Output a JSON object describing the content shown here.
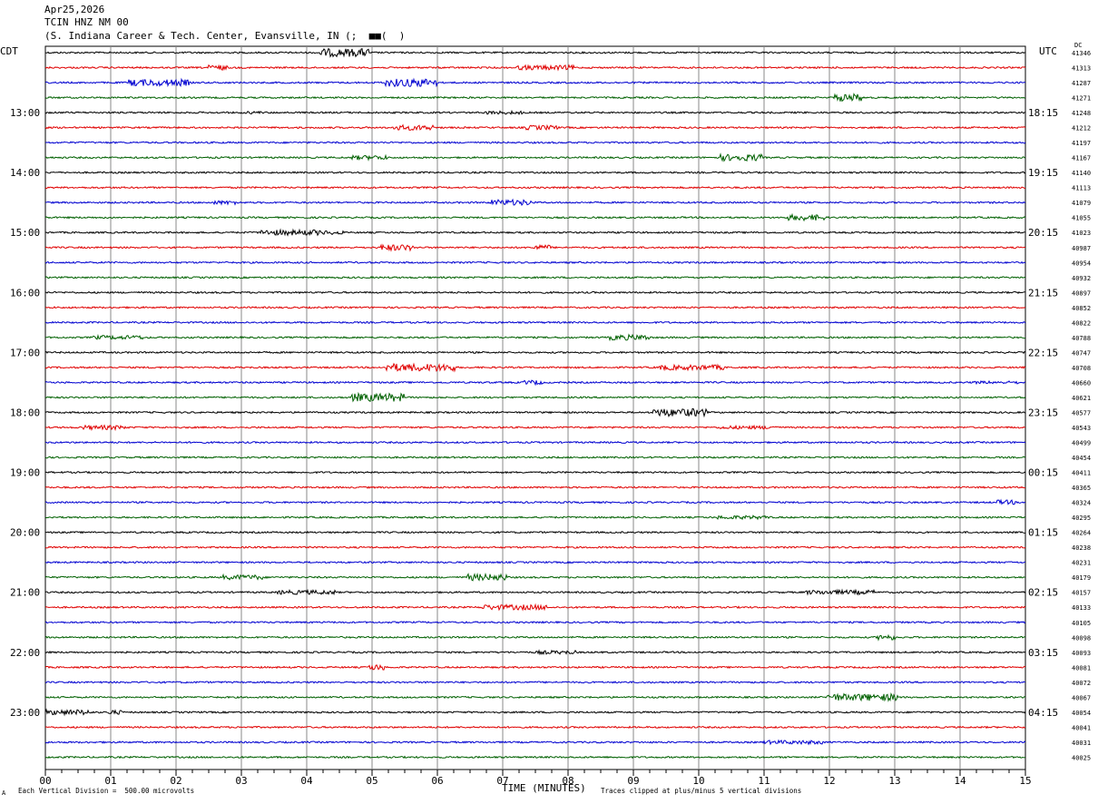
{
  "header": {
    "date": "Apr25,2026",
    "station": "TCIN HNZ NM 00",
    "location": "(S. Indiana Career & Tech. Center, Evansville, IN (;  ■■(  )"
  },
  "left_zone": "CDT",
  "right_zone": "UTC",
  "dc_label": "DC",
  "footer": {
    "corner": "A",
    "scale": "Each Vertical Division =  500.00 microvolts",
    "xlabel": "TIME (MINUTES)",
    "clip": "Traces clipped at plus/minus 5 vertical divisions"
  },
  "chart_data": {
    "type": "line",
    "xlim": [
      0,
      15
    ],
    "x_ticks": [
      "00",
      "01",
      "02",
      "03",
      "04",
      "05",
      "06",
      "07",
      "08",
      "09",
      "10",
      "11",
      "12",
      "13",
      "14",
      "15"
    ],
    "xlabel": "TIME (MINUTES)",
    "grid": true,
    "trace_colors": [
      "#000000",
      "#e00000",
      "#0000d0",
      "#006000"
    ],
    "left_hour_labels": [
      "13:00",
      "14:00",
      "15:00",
      "16:00",
      "17:00",
      "18:00",
      "19:00",
      "20:00",
      "21:00",
      "22:00",
      "23:00"
    ],
    "right_hour_labels": [
      "18:15",
      "19:15",
      "20:15",
      "21:15",
      "22:15",
      "23:15",
      "00:15",
      "01:15",
      "02:15",
      "03:15",
      "04:15"
    ],
    "dc_values": [
      "41346",
      "41313",
      "41287",
      "41271",
      "41248",
      "41212",
      "41197",
      "41167",
      "41140",
      "41113",
      "41079",
      "41055",
      "41023",
      "40987",
      "40954",
      "40932",
      "40897",
      "40852",
      "40822",
      "40788",
      "40747",
      "40708",
      "40660",
      "40621",
      "40577",
      "40543",
      "40499",
      "40454",
      "40411",
      "40365",
      "40324",
      "40295",
      "40264",
      "40238",
      "40231",
      "40179",
      "40157",
      "40133",
      "40105",
      "40098",
      "40093",
      "40081",
      "40072",
      "40067",
      "40054",
      "40041",
      "40031",
      "40025"
    ]
  }
}
